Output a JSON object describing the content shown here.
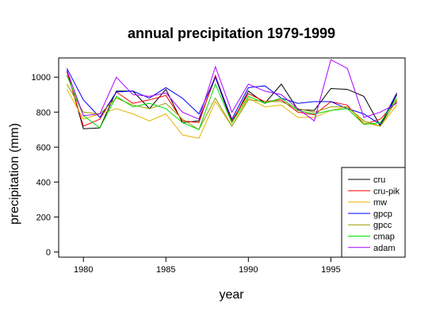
{
  "chart_data": {
    "type": "line",
    "title": "annual precipitation 1979-1999",
    "xlabel": "year",
    "ylabel": "precipitation (mm)",
    "x": [
      1979,
      1980,
      1981,
      1982,
      1983,
      1984,
      1985,
      1986,
      1987,
      1988,
      1989,
      1990,
      1991,
      1992,
      1993,
      1994,
      1995,
      1996,
      1997,
      1998,
      1999
    ],
    "xlim": [
      1978.5,
      1999.5
    ],
    "ylim": [
      -30,
      1110
    ],
    "xticks": [
      1980,
      1985,
      1990,
      1995
    ],
    "yticks": [
      0,
      200,
      400,
      600,
      800,
      1000
    ],
    "grid": false,
    "legend_position": "bottom-right",
    "series": [
      {
        "name": "cru",
        "color": "#000000",
        "values": [
          1040,
          705,
          710,
          920,
          920,
          820,
          930,
          740,
          750,
          1000,
          740,
          920,
          850,
          960,
          815,
          810,
          935,
          930,
          890,
          720,
          900
        ]
      },
      {
        "name": "cru-pik",
        "color": "#ff0000",
        "values": [
          1030,
          720,
          760,
          915,
          850,
          870,
          895,
          750,
          740,
          1010,
          750,
          905,
          860,
          870,
          800,
          785,
          860,
          840,
          730,
          760,
          860
        ]
      },
      {
        "name": "mw",
        "color": "#e6b400",
        "values": [
          930,
          760,
          790,
          820,
          790,
          750,
          790,
          670,
          650,
          860,
          720,
          880,
          830,
          840,
          770,
          770,
          810,
          830,
          740,
          720,
          840
        ]
      },
      {
        "name": "gpcp",
        "color": "#0000ff",
        "values": [
          1050,
          870,
          770,
          915,
          920,
          880,
          940,
          880,
          790,
          1000,
          760,
          940,
          950,
          880,
          850,
          860,
          860,
          820,
          790,
          730,
          910
        ]
      },
      {
        "name": "gpcc",
        "color": "#999900",
        "values": [
          960,
          800,
          790,
          880,
          840,
          820,
          850,
          760,
          700,
          880,
          720,
          870,
          860,
          860,
          820,
          800,
          830,
          830,
          750,
          720,
          870
        ]
      },
      {
        "name": "cmap",
        "color": "#00dd00",
        "values": [
          1010,
          780,
          710,
          890,
          830,
          850,
          820,
          740,
          700,
          960,
          740,
          890,
          850,
          880,
          810,
          790,
          810,
          820,
          730,
          740,
          880
        ]
      },
      {
        "name": "adam",
        "color": "#aa00ff",
        "values": [
          1040,
          780,
          790,
          1000,
          900,
          890,
          910,
          800,
          760,
          1060,
          800,
          960,
          920,
          900,
          820,
          750,
          1100,
          1050,
          770,
          800,
          850
        ]
      }
    ]
  }
}
